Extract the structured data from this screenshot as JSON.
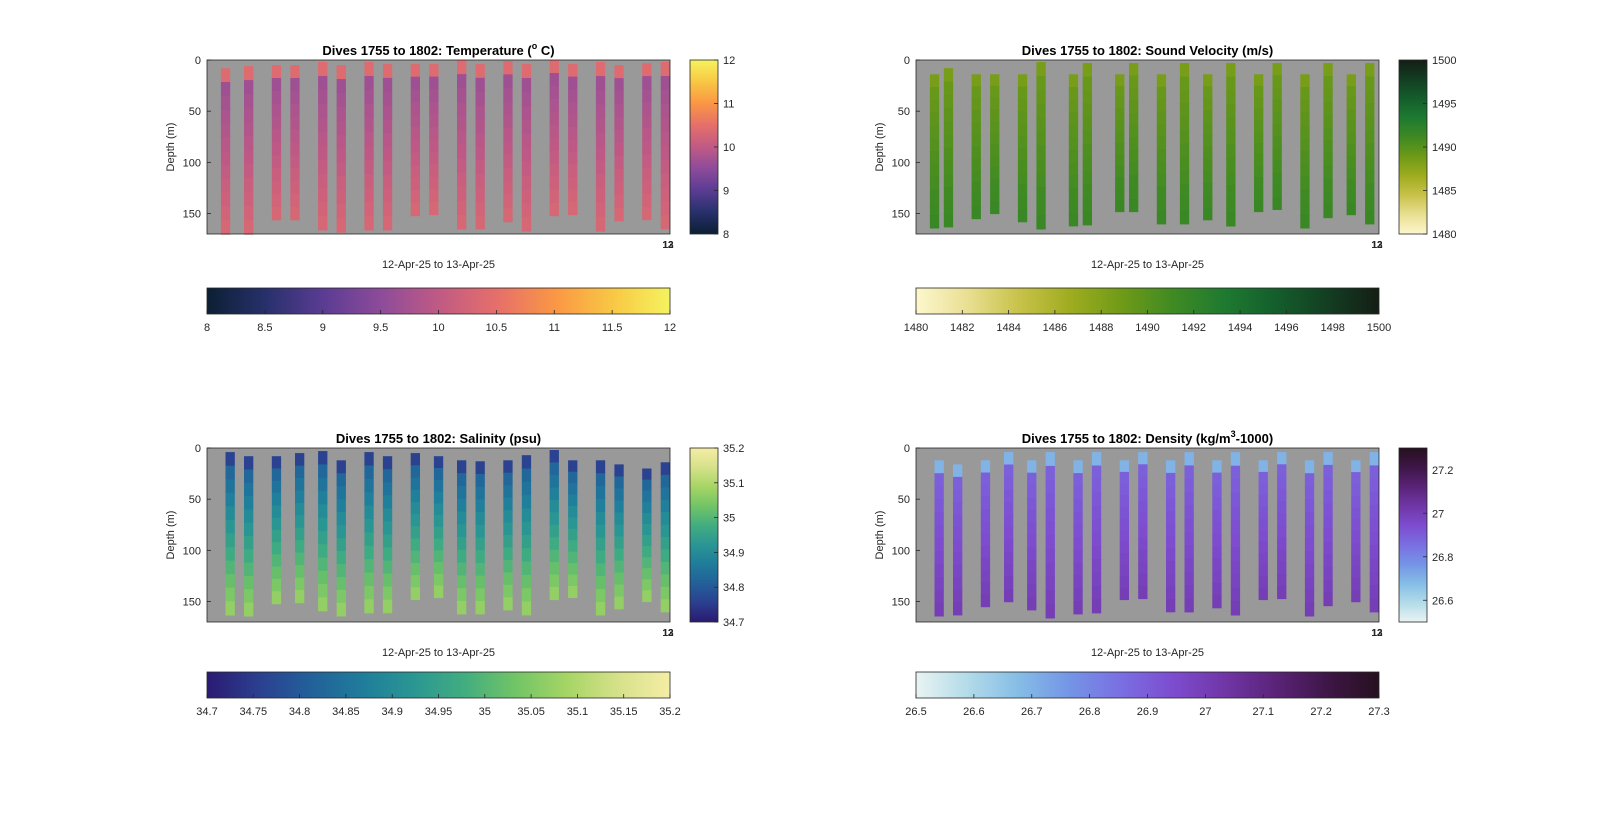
{
  "figure": {
    "background": "#ffffff",
    "plot_background": "#999999"
  },
  "chart_data": [
    {
      "type": "heatmap",
      "title_main": "Dives 1755 to 1802: Temperature (",
      "title_sup": "o",
      "title_tail": " C)",
      "xlabel": "12-Apr-25 to 13-Apr-25",
      "ylabel": "Depth (m)",
      "x_end_tick_labels": [
        "12",
        "13"
      ],
      "yticks": [
        "0",
        "50",
        "100",
        "150"
      ],
      "ylim": [
        0,
        170
      ],
      "clim": [
        8,
        12
      ],
      "colorbar_ticks": [
        "8",
        "9",
        "10",
        "11",
        "12"
      ],
      "hcolorbar_ticks": [
        "8",
        "8.5",
        "9",
        "9.5",
        "10",
        "10.5",
        "11",
        "11.5",
        "12"
      ],
      "colormap": [
        "#0c1f33",
        "#27306b",
        "#5a3c93",
        "#8d4b9a",
        "#c05a85",
        "#e56f6a",
        "#fa9645",
        "#f8c744",
        "#f5f35f"
      ],
      "profile_value_range": [
        9.6,
        10.3
      ],
      "surface_value": 10.4,
      "profiles": [
        {
          "cast": "descent",
          "start": 0.03,
          "end": 0.05,
          "top": 8,
          "bottom": 170
        },
        {
          "cast": "ascent",
          "start": 0.08,
          "end": 0.1,
          "top": 6,
          "bottom": 170
        },
        {
          "cast": "descent",
          "start": 0.14,
          "end": 0.16,
          "top": 5,
          "bottom": 156
        },
        {
          "cast": "ascent",
          "start": 0.18,
          "end": 0.2,
          "top": 5,
          "bottom": 156
        },
        {
          "cast": "descent",
          "start": 0.24,
          "end": 0.26,
          "top": 2,
          "bottom": 166
        },
        {
          "cast": "ascent",
          "start": 0.28,
          "end": 0.3,
          "top": 5,
          "bottom": 168
        },
        {
          "cast": "descent",
          "start": 0.34,
          "end": 0.36,
          "top": 2,
          "bottom": 166
        },
        {
          "cast": "ascent",
          "start": 0.38,
          "end": 0.4,
          "top": 4,
          "bottom": 166
        },
        {
          "cast": "descent",
          "start": 0.44,
          "end": 0.46,
          "top": 4,
          "bottom": 152
        },
        {
          "cast": "ascent",
          "start": 0.48,
          "end": 0.5,
          "top": 4,
          "bottom": 151
        },
        {
          "cast": "descent",
          "start": 0.54,
          "end": 0.56,
          "top": 0,
          "bottom": 165
        },
        {
          "cast": "ascent",
          "start": 0.58,
          "end": 0.6,
          "top": 4,
          "bottom": 165
        },
        {
          "cast": "descent",
          "start": 0.64,
          "end": 0.66,
          "top": 1,
          "bottom": 158
        },
        {
          "cast": "ascent",
          "start": 0.68,
          "end": 0.7,
          "top": 4,
          "bottom": 167
        },
        {
          "cast": "descent",
          "start": 0.74,
          "end": 0.76,
          "top": 0,
          "bottom": 152
        },
        {
          "cast": "ascent",
          "start": 0.78,
          "end": 0.8,
          "top": 4,
          "bottom": 151
        },
        {
          "cast": "descent",
          "start": 0.84,
          "end": 0.86,
          "top": 2,
          "bottom": 167
        },
        {
          "cast": "ascent",
          "start": 0.88,
          "end": 0.9,
          "top": 5,
          "bottom": 157
        },
        {
          "cast": "descent",
          "start": 0.94,
          "end": 0.96,
          "top": 3,
          "bottom": 156
        },
        {
          "cast": "ascent",
          "start": 0.98,
          "end": 1.0,
          "top": 2,
          "bottom": 165
        }
      ]
    },
    {
      "type": "heatmap",
      "title_main": "Dives 1755 to 1802: Sound Velocity (m/s)",
      "title_sup": "",
      "title_tail": "",
      "xlabel": "12-Apr-25 to 13-Apr-25",
      "ylabel": "Depth (m)",
      "x_end_tick_labels": [
        "12",
        "13"
      ],
      "yticks": [
        "0",
        "50",
        "100",
        "150"
      ],
      "ylim": [
        0,
        170
      ],
      "clim": [
        1480,
        1500
      ],
      "colorbar_ticks": [
        "1480",
        "1485",
        "1490",
        "1495",
        "1500"
      ],
      "hcolorbar_ticks": [
        "1480",
        "1482",
        "1484",
        "1486",
        "1488",
        "1490",
        "1492",
        "1494",
        "1496",
        "1498",
        "1500"
      ],
      "colormap": [
        "#fdf7cd",
        "#e9df93",
        "#c8c24a",
        "#9fac1f",
        "#6f9a18",
        "#3f8a23",
        "#1e7a30",
        "#145e2c",
        "#133e22",
        "#141e15"
      ],
      "profile_value_range": [
        1489.0,
        1491.5
      ],
      "surface_value": 1488.5,
      "profiles": [
        {
          "cast": "descent",
          "start": 0.03,
          "end": 0.05,
          "top": 14,
          "bottom": 164
        },
        {
          "cast": "ascent",
          "start": 0.06,
          "end": 0.08,
          "top": 8,
          "bottom": 163
        },
        {
          "cast": "descent",
          "start": 0.12,
          "end": 0.14,
          "top": 14,
          "bottom": 155
        },
        {
          "cast": "ascent",
          "start": 0.16,
          "end": 0.18,
          "top": 14,
          "bottom": 150
        },
        {
          "cast": "descent",
          "start": 0.22,
          "end": 0.24,
          "top": 14,
          "bottom": 158
        },
        {
          "cast": "ascent",
          "start": 0.26,
          "end": 0.28,
          "top": 2,
          "bottom": 165
        },
        {
          "cast": "descent",
          "start": 0.33,
          "end": 0.35,
          "top": 14,
          "bottom": 162
        },
        {
          "cast": "ascent",
          "start": 0.36,
          "end": 0.38,
          "top": 3,
          "bottom": 161
        },
        {
          "cast": "descent",
          "start": 0.43,
          "end": 0.45,
          "top": 14,
          "bottom": 148
        },
        {
          "cast": "ascent",
          "start": 0.46,
          "end": 0.48,
          "top": 3,
          "bottom": 148
        },
        {
          "cast": "descent",
          "start": 0.52,
          "end": 0.54,
          "top": 14,
          "bottom": 160
        },
        {
          "cast": "ascent",
          "start": 0.57,
          "end": 0.59,
          "top": 3,
          "bottom": 160
        },
        {
          "cast": "descent",
          "start": 0.62,
          "end": 0.64,
          "top": 14,
          "bottom": 156
        },
        {
          "cast": "ascent",
          "start": 0.67,
          "end": 0.69,
          "top": 3,
          "bottom": 162
        },
        {
          "cast": "descent",
          "start": 0.73,
          "end": 0.75,
          "top": 14,
          "bottom": 148
        },
        {
          "cast": "ascent",
          "start": 0.77,
          "end": 0.79,
          "top": 3,
          "bottom": 146
        },
        {
          "cast": "descent",
          "start": 0.83,
          "end": 0.85,
          "top": 14,
          "bottom": 164
        },
        {
          "cast": "ascent",
          "start": 0.88,
          "end": 0.9,
          "top": 3,
          "bottom": 154
        },
        {
          "cast": "descent",
          "start": 0.93,
          "end": 0.95,
          "top": 14,
          "bottom": 151
        },
        {
          "cast": "ascent",
          "start": 0.97,
          "end": 0.99,
          "top": 3,
          "bottom": 160
        }
      ]
    },
    {
      "type": "heatmap",
      "title_main": "Dives 1755 to 1802: Salinity (psu)",
      "title_sup": "",
      "title_tail": "",
      "xlabel": "12-Apr-25 to 13-Apr-25",
      "ylabel": "Depth (m)",
      "x_end_tick_labels": [
        "12",
        "13"
      ],
      "yticks": [
        "0",
        "50",
        "100",
        "150"
      ],
      "ylim": [
        0,
        170
      ],
      "clim": [
        34.7,
        35.2
      ],
      "colorbar_ticks": [
        "34.7",
        "34.8",
        "34.9",
        "35",
        "35.1",
        "35.2"
      ],
      "hcolorbar_ticks": [
        "34.7",
        "34.75",
        "34.8",
        "34.85",
        "34.9",
        "34.95",
        "35",
        "35.05",
        "35.1",
        "35.15",
        "35.2"
      ],
      "colormap": [
        "#2a1a72",
        "#2b3f8f",
        "#22609a",
        "#1f7c9b",
        "#2a9693",
        "#42ad80",
        "#72c466",
        "#a6d565",
        "#d6e18a",
        "#f5eda5"
      ],
      "profile_value_range": [
        34.8,
        35.07
      ],
      "surface_value": 34.76,
      "profiles": [
        {
          "cast": "descent",
          "start": 0.04,
          "end": 0.06,
          "top": 4,
          "bottom": 163
        },
        {
          "cast": "ascent",
          "start": 0.08,
          "end": 0.1,
          "top": 8,
          "bottom": 164
        },
        {
          "cast": "descent",
          "start": 0.14,
          "end": 0.16,
          "top": 8,
          "bottom": 152
        },
        {
          "cast": "ascent",
          "start": 0.19,
          "end": 0.21,
          "top": 5,
          "bottom": 151
        },
        {
          "cast": "descent",
          "start": 0.24,
          "end": 0.26,
          "top": 3,
          "bottom": 159
        },
        {
          "cast": "ascent",
          "start": 0.28,
          "end": 0.3,
          "top": 12,
          "bottom": 164
        },
        {
          "cast": "descent",
          "start": 0.34,
          "end": 0.36,
          "top": 4,
          "bottom": 161
        },
        {
          "cast": "ascent",
          "start": 0.38,
          "end": 0.4,
          "top": 8,
          "bottom": 161
        },
        {
          "cast": "descent",
          "start": 0.44,
          "end": 0.46,
          "top": 5,
          "bottom": 148
        },
        {
          "cast": "ascent",
          "start": 0.49,
          "end": 0.51,
          "top": 8,
          "bottom": 146
        },
        {
          "cast": "descent",
          "start": 0.54,
          "end": 0.56,
          "top": 12,
          "bottom": 162
        },
        {
          "cast": "ascent",
          "start": 0.58,
          "end": 0.6,
          "top": 13,
          "bottom": 162
        },
        {
          "cast": "descent",
          "start": 0.64,
          "end": 0.66,
          "top": 12,
          "bottom": 158
        },
        {
          "cast": "ascent",
          "start": 0.68,
          "end": 0.7,
          "top": 7,
          "bottom": 163
        },
        {
          "cast": "descent",
          "start": 0.74,
          "end": 0.76,
          "top": 2,
          "bottom": 148
        },
        {
          "cast": "ascent",
          "start": 0.78,
          "end": 0.8,
          "top": 12,
          "bottom": 146
        },
        {
          "cast": "descent",
          "start": 0.84,
          "end": 0.86,
          "top": 12,
          "bottom": 163
        },
        {
          "cast": "ascent",
          "start": 0.88,
          "end": 0.9,
          "top": 16,
          "bottom": 157
        },
        {
          "cast": "descent",
          "start": 0.94,
          "end": 0.96,
          "top": 20,
          "bottom": 150
        },
        {
          "cast": "ascent",
          "start": 0.98,
          "end": 1.0,
          "top": 14,
          "bottom": 160
        }
      ]
    },
    {
      "type": "heatmap",
      "title_main": "Dives 1755 to 1802: Density (kg/m",
      "title_sup": "3",
      "title_tail": "-1000)",
      "xlabel": "12-Apr-25 to 13-Apr-25",
      "ylabel": "Depth (m)",
      "x_end_tick_labels": [
        "12",
        "13"
      ],
      "yticks": [
        "0",
        "50",
        "100",
        "150"
      ],
      "ylim": [
        0,
        170
      ],
      "clim": [
        26.5,
        27.3
      ],
      "colorbar_ticks": [
        "26.6",
        "26.8",
        "27",
        "27.2"
      ],
      "hcolorbar_ticks": [
        "26.5",
        "26.6",
        "26.7",
        "26.8",
        "26.9",
        "27",
        "27.1",
        "27.2",
        "27.3"
      ],
      "colormap": [
        "#e9f4f3",
        "#b3dbe9",
        "#85bde6",
        "#7494e6",
        "#7a6ee2",
        "#7d4ccf",
        "#7036a6",
        "#5a2378",
        "#3e1647",
        "#26101f"
      ],
      "profile_value_range": [
        26.88,
        27.0
      ],
      "surface_value": 26.7,
      "profiles": [
        {
          "cast": "descent",
          "start": 0.04,
          "end": 0.06,
          "top": 12,
          "bottom": 164
        },
        {
          "cast": "ascent",
          "start": 0.08,
          "end": 0.1,
          "top": 16,
          "bottom": 163
        },
        {
          "cast": "descent",
          "start": 0.14,
          "end": 0.16,
          "top": 12,
          "bottom": 155
        },
        {
          "cast": "ascent",
          "start": 0.19,
          "end": 0.21,
          "top": 4,
          "bottom": 150
        },
        {
          "cast": "descent",
          "start": 0.24,
          "end": 0.26,
          "top": 12,
          "bottom": 158
        },
        {
          "cast": "ascent",
          "start": 0.28,
          "end": 0.3,
          "top": 4,
          "bottom": 166
        },
        {
          "cast": "descent",
          "start": 0.34,
          "end": 0.36,
          "top": 12,
          "bottom": 162
        },
        {
          "cast": "ascent",
          "start": 0.38,
          "end": 0.4,
          "top": 4,
          "bottom": 161
        },
        {
          "cast": "descent",
          "start": 0.44,
          "end": 0.46,
          "top": 12,
          "bottom": 148
        },
        {
          "cast": "ascent",
          "start": 0.48,
          "end": 0.5,
          "top": 4,
          "bottom": 147
        },
        {
          "cast": "descent",
          "start": 0.54,
          "end": 0.56,
          "top": 12,
          "bottom": 160
        },
        {
          "cast": "ascent",
          "start": 0.58,
          "end": 0.6,
          "top": 4,
          "bottom": 160
        },
        {
          "cast": "descent",
          "start": 0.64,
          "end": 0.66,
          "top": 12,
          "bottom": 156
        },
        {
          "cast": "ascent",
          "start": 0.68,
          "end": 0.7,
          "top": 4,
          "bottom": 163
        },
        {
          "cast": "descent",
          "start": 0.74,
          "end": 0.76,
          "top": 12,
          "bottom": 148
        },
        {
          "cast": "ascent",
          "start": 0.78,
          "end": 0.8,
          "top": 4,
          "bottom": 147
        },
        {
          "cast": "descent",
          "start": 0.84,
          "end": 0.86,
          "top": 12,
          "bottom": 164
        },
        {
          "cast": "ascent",
          "start": 0.88,
          "end": 0.9,
          "top": 4,
          "bottom": 154
        },
        {
          "cast": "descent",
          "start": 0.94,
          "end": 0.96,
          "top": 12,
          "bottom": 150
        },
        {
          "cast": "ascent",
          "start": 0.98,
          "end": 1.0,
          "top": 4,
          "bottom": 160
        }
      ]
    }
  ]
}
